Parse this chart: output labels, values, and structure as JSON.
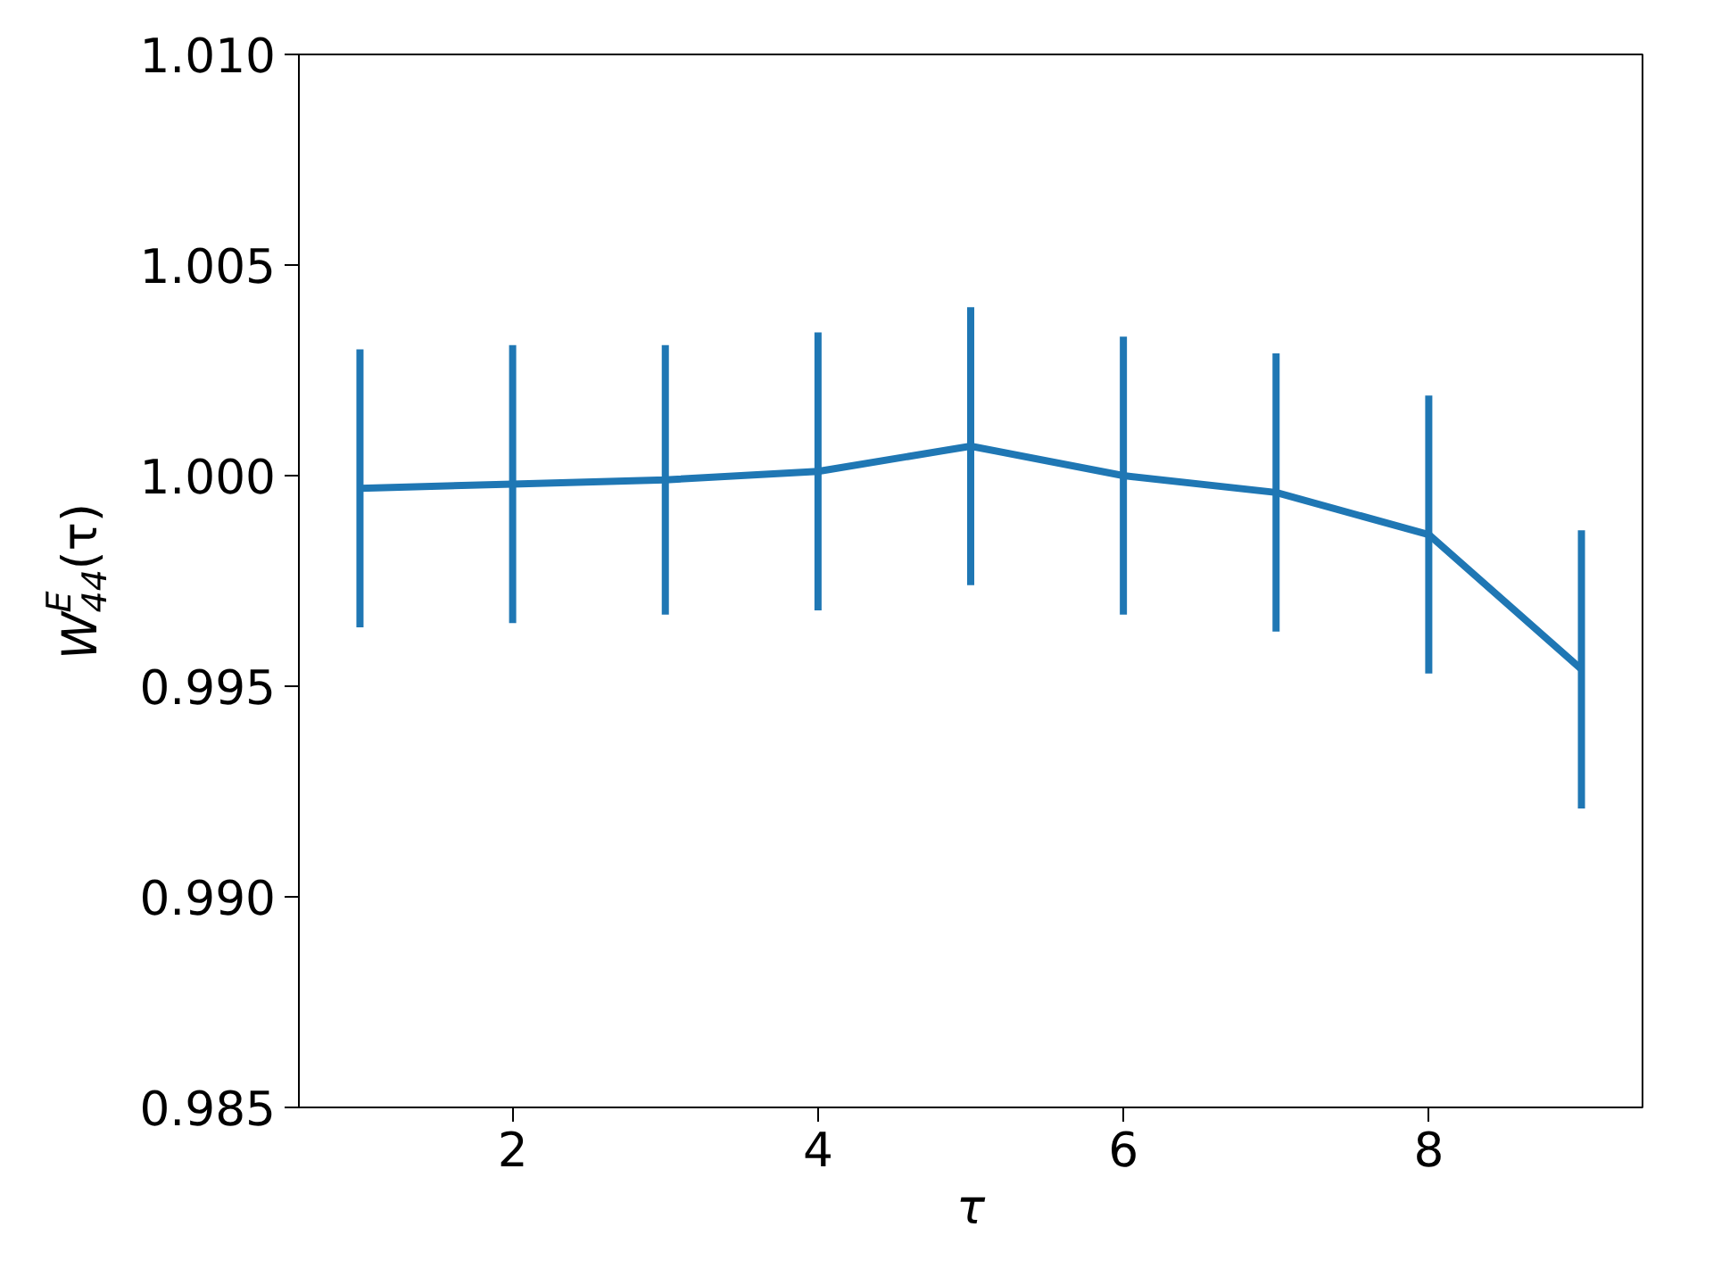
{
  "chart_data": {
    "type": "line",
    "xlabel": "τ",
    "ylabel": "W$^{E}$$_{44}$(τ)",
    "x": [
      1,
      2,
      3,
      4,
      5,
      6,
      7,
      8,
      9
    ],
    "series": [
      {
        "color": "#1f77b4",
        "values": [
          0.9997,
          0.9998,
          0.9999,
          1.0001,
          1.0007,
          1.0,
          0.9996,
          0.9986,
          0.9954
        ],
        "errors": [
          0.0033,
          0.0033,
          0.0032,
          0.0033,
          0.0033,
          0.0033,
          0.0033,
          0.0033,
          0.0033
        ]
      }
    ],
    "xlim": [
      0.6,
      9.4
    ],
    "xticks": [
      2,
      4,
      6,
      8
    ],
    "ylim": [
      0.985,
      1.01
    ],
    "yticks": [
      {
        "value": 0.985,
        "label": "0.985"
      },
      {
        "value": 0.99,
        "label": "0.990"
      },
      {
        "value": 0.995,
        "label": "0.995"
      },
      {
        "value": 1.0,
        "label": "1.000"
      },
      {
        "value": 1.005,
        "label": "1.005"
      },
      {
        "value": 1.01,
        "label": "1.010"
      }
    ],
    "grid": false
  }
}
